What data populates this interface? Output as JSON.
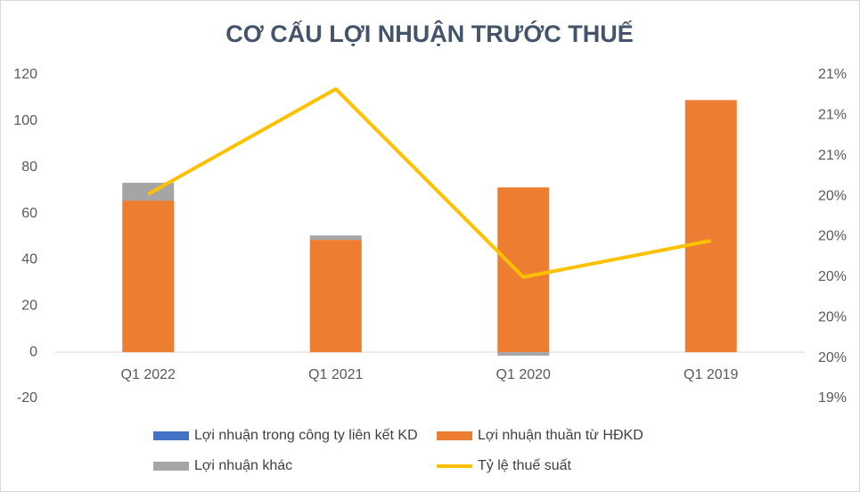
{
  "chart_data": {
    "type": "bar",
    "title": "CƠ CẤU LỢI NHUẬN TRƯỚC THUẾ",
    "categories": [
      "Q1 2022",
      "Q1 2021",
      "Q1 2020",
      "Q1 2019"
    ],
    "series": [
      {
        "name": "Lợi nhuận trong công ty liên kết KD",
        "color": "#4472c4",
        "values": [
          0,
          0,
          0,
          0
        ]
      },
      {
        "name": "Lợi nhuận thuần từ HĐKD",
        "color": "#ed7d31",
        "values": [
          65.6,
          48.6,
          71.3,
          109.1
        ]
      },
      {
        "name": "Lợi nhuận khác",
        "color": "#a5a5a5",
        "values": [
          7.7,
          1.9,
          -1.5,
          0
        ]
      },
      {
        "name": "Tỷ lệ thuế suất",
        "color": "#ffc000",
        "type": "line",
        "axis": "y2",
        "values": [
          20.41,
          20.93,
          20.0,
          20.18
        ]
      }
    ],
    "ylim": [
      -20,
      120
    ],
    "yticks": [
      -20,
      0,
      20,
      40,
      60,
      80,
      100,
      120
    ],
    "y2lim": [
      19.4,
      21.0
    ],
    "y2ticks": [
      {
        "value": 19.4,
        "label": "19%"
      },
      {
        "value": 19.6,
        "label": "20%"
      },
      {
        "value": 19.8,
        "label": "20%"
      },
      {
        "value": 20.0,
        "label": "20%"
      },
      {
        "value": 20.2,
        "label": "20%"
      },
      {
        "value": 20.4,
        "label": "20%"
      },
      {
        "value": 20.6,
        "label": "21%"
      },
      {
        "value": 20.8,
        "label": "21%"
      },
      {
        "value": 21.0,
        "label": "21%"
      }
    ],
    "grid": false
  }
}
